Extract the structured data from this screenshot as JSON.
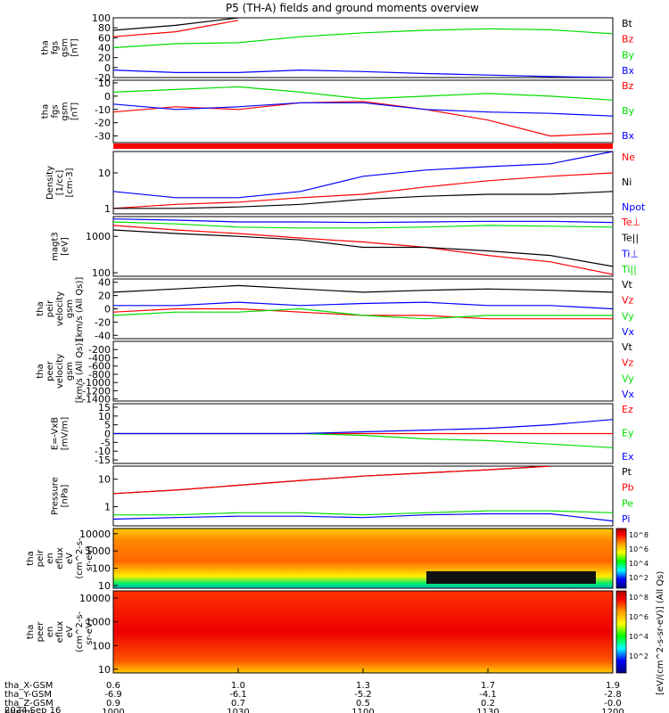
{
  "title": "P5 (TH-A) fields and ground moments overview",
  "colors": {
    "black": "#000000",
    "red": "#ff0000",
    "green": "#00dd00",
    "blue": "#0000ff",
    "navy": "#000099"
  },
  "panels": [
    {
      "id": "fgs_gsm",
      "ylabel": [
        "tha",
        "fgs",
        "gsm",
        "[nT]"
      ],
      "yticks": [
        "100",
        "80",
        "60",
        "40",
        "20",
        "0",
        "-20"
      ],
      "legend": [
        {
          "t": "Bt",
          "c": "black"
        },
        {
          "t": "Bz",
          "c": "red"
        },
        {
          "t": "By",
          "c": "green"
        },
        {
          "t": "Bx",
          "c": "blue"
        }
      ]
    },
    {
      "id": "fgs_gse",
      "ylabel": [
        "tha",
        "fgs",
        "gsm",
        "[nT]"
      ],
      "yticks": [
        "10",
        "0",
        "-10",
        "-20",
        "-30"
      ],
      "legend": [
        {
          "t": "Bz",
          "c": "red"
        },
        {
          "t": "By",
          "c": "green"
        },
        {
          "t": "Bx",
          "c": "blue"
        }
      ]
    },
    {
      "id": "density",
      "ylabel": [
        "Density",
        "[1/cc]",
        "[cm-3]"
      ],
      "yticks": [
        "10",
        "1"
      ],
      "legend": [
        {
          "t": "Ne",
          "c": "red"
        },
        {
          "t": "Ni",
          "c": "black"
        },
        {
          "t": "Npot",
          "c": "blue"
        }
      ]
    },
    {
      "id": "temp",
      "ylabel": [
        "magt3",
        "[eV]"
      ],
      "yticks": [
        "1000",
        "100"
      ],
      "legend": [
        {
          "t": "Te⊥",
          "c": "red"
        },
        {
          "t": "Te||",
          "c": "black"
        },
        {
          "t": "Ti⊥",
          "c": "blue"
        },
        {
          "t": "Ti||",
          "c": "green"
        }
      ]
    },
    {
      "id": "peir_vel",
      "ylabel": [
        "tha",
        "peir",
        "velocity",
        "gsm",
        "[km/s (All Qs)]"
      ],
      "yticks": [
        "40",
        "20",
        "0",
        "-20",
        "-40"
      ],
      "legend": [
        {
          "t": "Vt",
          "c": "black"
        },
        {
          "t": "Vz",
          "c": "red"
        },
        {
          "t": "Vy",
          "c": "green"
        },
        {
          "t": "Vx",
          "c": "blue"
        }
      ]
    },
    {
      "id": "peer_vel",
      "ylabel": [
        "tha",
        "peer",
        "velocity",
        "gsm",
        "[km/s (All Qs)]"
      ],
      "yticks": [
        "-200",
        "-400",
        "-600",
        "-800",
        "-1000",
        "-1200",
        "-1400"
      ],
      "legend": [
        {
          "t": "Vt",
          "c": "black"
        },
        {
          "t": "Vz",
          "c": "red"
        },
        {
          "t": "Vy",
          "c": "green"
        },
        {
          "t": "Vx",
          "c": "blue"
        }
      ]
    },
    {
      "id": "efield",
      "ylabel": [
        "E=-VxB",
        "[mV/m]"
      ],
      "yticks": [
        "15",
        "10",
        "5",
        "0",
        "-5",
        "-10",
        "-15"
      ],
      "legend": [
        {
          "t": "Ez",
          "c": "red"
        },
        {
          "t": "Ey",
          "c": "green"
        },
        {
          "t": "Ex",
          "c": "blue"
        }
      ]
    },
    {
      "id": "pressure",
      "ylabel": [
        "Pressure",
        "[nPa]"
      ],
      "yticks": [
        "10",
        "1"
      ],
      "legend": [
        {
          "t": "Pt",
          "c": "black"
        },
        {
          "t": "Pb",
          "c": "red"
        },
        {
          "t": "Pe",
          "c": "green"
        },
        {
          "t": "Pi",
          "c": "blue"
        }
      ]
    },
    {
      "id": "peir_spec",
      "ylabel": [
        "tha",
        "peir",
        "en",
        "eflux",
        "eV",
        "(cm^2-s-",
        "sr-eV)"
      ],
      "yticks": [
        "10000",
        "1000",
        "100",
        "10"
      ]
    },
    {
      "id": "peer_spec",
      "ylabel": [
        "tha",
        "peer",
        "en",
        "eflux",
        "eV",
        "(cm^2-s-",
        "sr-eV)"
      ],
      "yticks": [
        "10000",
        "1000",
        "100",
        "10"
      ]
    }
  ],
  "colorbar": {
    "label": "[eV/(cm^2-s-sr-eV)] (All Qs)",
    "ticks_top": [
      "10^8",
      "10^6",
      "10^4",
      "10^2"
    ],
    "ticks_bottom": [
      "10^8",
      "10^6",
      "10^4",
      "10^2"
    ]
  },
  "xaxis": {
    "rows": [
      {
        "label": "tha_X-GSM",
        "values": [
          "0.6",
          "1.0",
          "1.3",
          "1.7",
          "1.9"
        ]
      },
      {
        "label": "tha_Y-GSM",
        "values": [
          "-6.9",
          "-6.1",
          "-5.2",
          "-4.1",
          "-2.8"
        ]
      },
      {
        "label": "tha_Z-GSM",
        "values": [
          "0.9",
          "0.7",
          "0.5",
          "0.2",
          "-0.0"
        ]
      },
      {
        "label": "hhmm",
        "values": [
          "1000",
          "1030",
          "1100",
          "1130",
          "1200"
        ]
      }
    ],
    "date": "2024 Sep 16"
  },
  "chart_data": {
    "type": "line",
    "time_hhmm": [
      "1000",
      "1015",
      "1030",
      "1045",
      "1100",
      "1115",
      "1130",
      "1145",
      "1200"
    ],
    "panels": [
      {
        "id": "fgs_gsm",
        "series": [
          {
            "name": "Bt",
            "values": [
              75,
              85,
              100,
              null,
              null,
              null,
              null,
              null,
              null
            ]
          },
          {
            "name": "Bz",
            "values": [
              62,
              72,
              95,
              null,
              null,
              null,
              null,
              null,
              null
            ]
          },
          {
            "name": "By",
            "values": [
              40,
              48,
              50,
              62,
              70,
              75,
              78,
              76,
              68
            ]
          },
          {
            "name": "Bx",
            "values": [
              -5,
              -10,
              -10,
              -5,
              -8,
              -12,
              -15,
              -18,
              -20
            ]
          }
        ]
      },
      {
        "id": "fgs_gse",
        "series": [
          {
            "name": "Bz",
            "values": [
              -12,
              -8,
              -10,
              -5,
              -4,
              -10,
              -18,
              -30,
              -28
            ]
          },
          {
            "name": "By",
            "values": [
              3,
              5,
              7,
              3,
              -2,
              0,
              2,
              0,
              -3
            ]
          },
          {
            "name": "Bx",
            "values": [
              -6,
              -10,
              -8,
              -5,
              -5,
              -10,
              -12,
              -13,
              -15
            ]
          }
        ]
      },
      {
        "id": "density",
        "series": [
          {
            "name": "Ne",
            "values": [
              1,
              1.3,
              1.5,
              2,
              2.5,
              4,
              6,
              8,
              10
            ]
          },
          {
            "name": "Ni",
            "values": [
              1,
              1,
              1.1,
              1.3,
              1.8,
              2.2,
              2.5,
              2.5,
              3
            ]
          },
          {
            "name": "Npot",
            "values": [
              3,
              2,
              2,
              3,
              8,
              12,
              15,
              18,
              40
            ]
          }
        ]
      },
      {
        "id": "temp",
        "series": [
          {
            "name": "Te⊥",
            "values": [
              2000,
              1500,
              1200,
              900,
              700,
              500,
              300,
              200,
              90
            ]
          },
          {
            "name": "Te||",
            "values": [
              1500,
              1200,
              1000,
              800,
              500,
              500,
              400,
              300,
              150
            ]
          },
          {
            "name": "Ti⊥",
            "values": [
              3000,
              2800,
              2500,
              2500,
              2400,
              2500,
              2600,
              2600,
              2400
            ]
          },
          {
            "name": "Ti||",
            "values": [
              2500,
              2200,
              1800,
              1700,
              1700,
              1800,
              2000,
              1900,
              1800
            ]
          }
        ]
      },
      {
        "id": "peir_vel",
        "series": [
          {
            "name": "Vt",
            "values": [
              25,
              30,
              35,
              30,
              25,
              28,
              30,
              28,
              25
            ]
          },
          {
            "name": "Vz",
            "values": [
              -5,
              0,
              0,
              -5,
              -10,
              -10,
              -15,
              -15,
              -15
            ]
          },
          {
            "name": "Vy",
            "values": [
              -10,
              -5,
              -5,
              0,
              -10,
              -15,
              -10,
              -10,
              -10
            ]
          },
          {
            "name": "Vx",
            "values": [
              5,
              5,
              10,
              5,
              8,
              10,
              5,
              5,
              0
            ]
          }
        ]
      },
      {
        "id": "efield",
        "series": [
          {
            "name": "Ez",
            "values": [
              0,
              0,
              0,
              0,
              0,
              0,
              0,
              0,
              0
            ]
          },
          {
            "name": "Ey",
            "values": [
              0,
              0,
              0,
              0,
              -1,
              -3,
              -4,
              -6,
              -8
            ]
          },
          {
            "name": "Ex",
            "values": [
              0,
              0,
              0,
              0,
              1,
              2,
              3,
              5,
              8
            ]
          }
        ]
      },
      {
        "id": "pressure",
        "series": [
          {
            "name": "Pt",
            "values": [
              3,
              4,
              6,
              9,
              13,
              17,
              22,
              30,
              null
            ]
          },
          {
            "name": "Pb",
            "values": [
              3,
              4,
              6,
              9,
              13,
              17,
              22,
              30,
              null
            ]
          },
          {
            "name": "Pe",
            "values": [
              0.5,
              0.5,
              0.6,
              0.6,
              0.5,
              0.6,
              0.7,
              0.7,
              0.6
            ]
          },
          {
            "name": "Pi",
            "values": [
              0.35,
              0.4,
              0.45,
              0.45,
              0.4,
              0.5,
              0.55,
              0.55,
              0.3
            ]
          }
        ]
      }
    ]
  }
}
